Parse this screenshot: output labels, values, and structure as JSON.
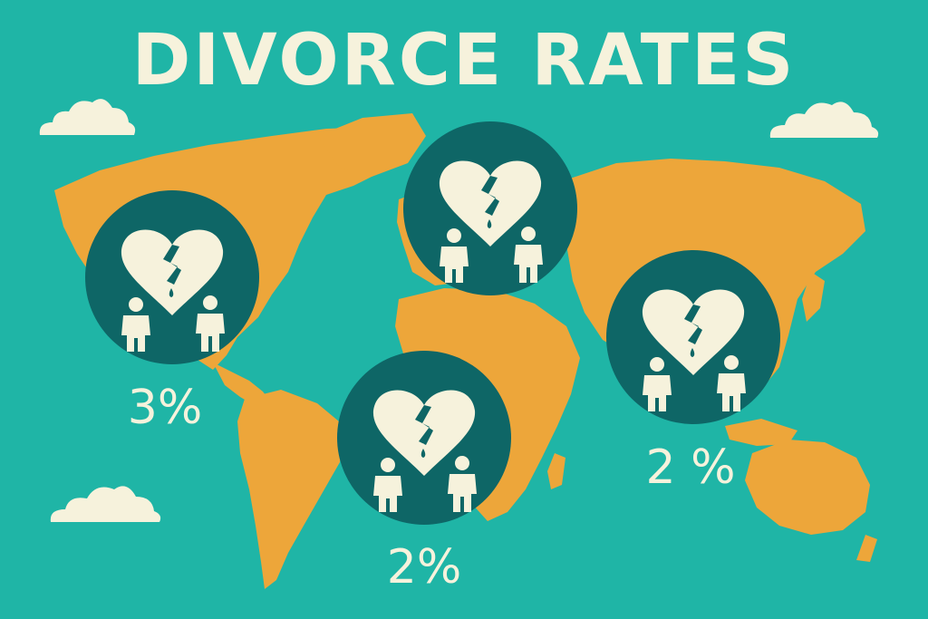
{
  "title": "DIVORCE RATES",
  "colors": {
    "background": "#1fb5a6",
    "land": "#eda63a",
    "badge": "#0e6666",
    "ink": "#f6f2dc"
  },
  "icons": [
    "cloud-icon",
    "broken-heart-icon",
    "person-icon"
  ],
  "markers": [
    {
      "id": "north-america",
      "rate": "3%"
    },
    {
      "id": "europe",
      "rate": ""
    },
    {
      "id": "asia",
      "rate": "2 %"
    },
    {
      "id": "south-atlantic",
      "rate": "2%"
    }
  ]
}
